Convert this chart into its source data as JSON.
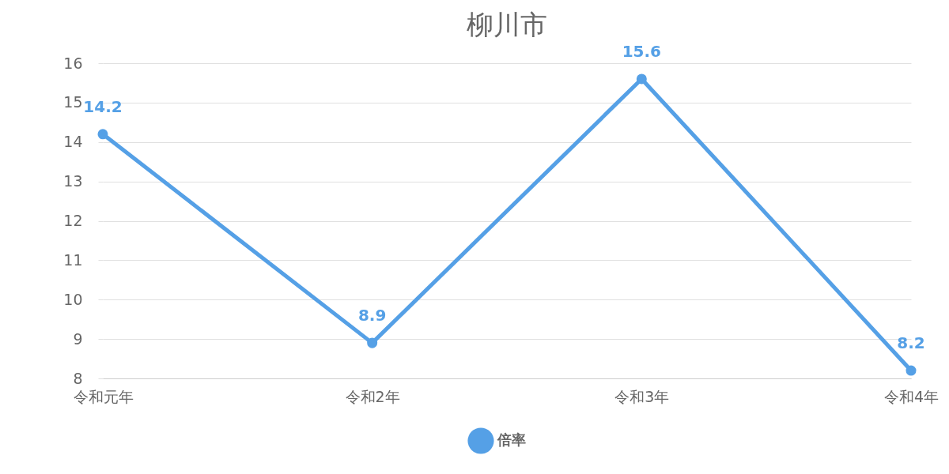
{
  "chart_data": {
    "type": "line",
    "title": "柳川市",
    "categories": [
      "令和元年",
      "令和2年",
      "令和3年",
      "令和4年"
    ],
    "series": [
      {
        "name": "倍率",
        "color": "#55a0e6",
        "values": [
          14.2,
          8.9,
          15.6,
          8.2
        ]
      }
    ],
    "ylim": [
      8,
      16
    ],
    "yticks": [
      8,
      9,
      10,
      11,
      12,
      13,
      14,
      15,
      16
    ],
    "grid": "y",
    "legend": "bottom",
    "marker": "circle",
    "line_style": "solid",
    "data_labels": true
  }
}
